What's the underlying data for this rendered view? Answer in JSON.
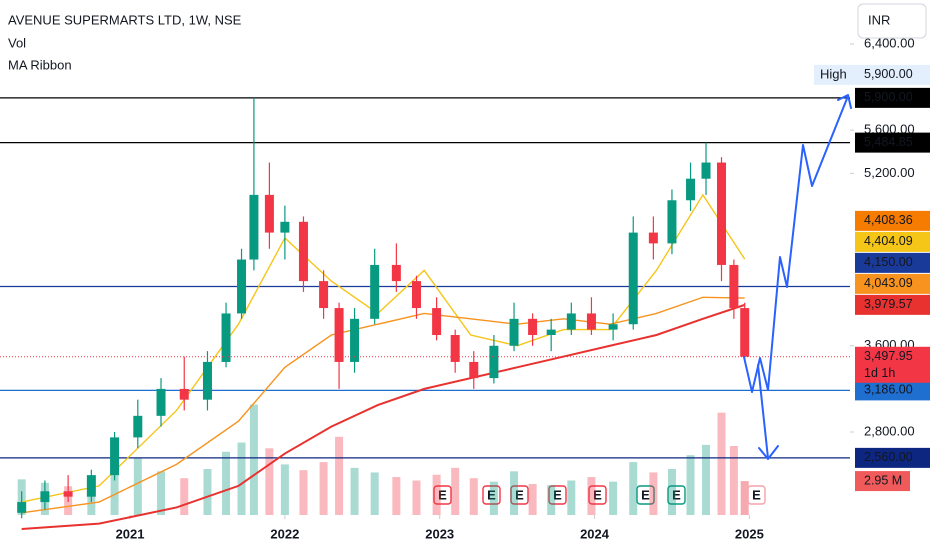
{
  "header": {
    "symbol": "AVENUE SUPERMARTS LTD, 1W, NSE",
    "indicators": [
      "Vol",
      "MA Ribbon"
    ],
    "currency": "INR"
  },
  "chart_data": {
    "type": "candlestick",
    "x": [
      2020.3,
      2020.45,
      2020.6,
      2020.75,
      2020.9,
      2021.05,
      2021.2,
      2021.35,
      2021.5,
      2021.62,
      2021.72,
      2021.8,
      2021.9,
      2022.0,
      2022.12,
      2022.25,
      2022.35,
      2022.45,
      2022.58,
      2022.72,
      2022.85,
      2022.98,
      2023.1,
      2023.22,
      2023.35,
      2023.48,
      2023.6,
      2023.72,
      2023.85,
      2023.98,
      2024.12,
      2024.25,
      2024.38,
      2024.5,
      2024.62,
      2024.72,
      2024.82,
      2024.9,
      2024.97
    ],
    "open": [
      2050,
      2150,
      2250,
      2200,
      2400,
      2750,
      2950,
      3200,
      3100,
      3450,
      3900,
      4400,
      5000,
      4650,
      4750,
      4200,
      3950,
      3450,
      3850,
      4350,
      4200,
      3950,
      3700,
      3450,
      3300,
      3600,
      3850,
      3700,
      3750,
      3900,
      3750,
      3800,
      4650,
      4550,
      4950,
      5150,
      5300,
      4350,
      3950
    ],
    "high": [
      2250,
      2350,
      2400,
      2450,
      2800,
      3100,
      3300,
      3500,
      3550,
      4000,
      4500,
      5900,
      5300,
      4900,
      4800,
      4300,
      4000,
      3950,
      4500,
      4550,
      4250,
      4050,
      3750,
      3550,
      3700,
      4000,
      3900,
      3850,
      4000,
      4050,
      3900,
      4800,
      4800,
      5050,
      5300,
      5484.85,
      5350,
      4400,
      4000
    ],
    "low": [
      2000,
      2080,
      2150,
      2150,
      2350,
      2650,
      2850,
      3000,
      3000,
      3400,
      3850,
      4300,
      4500,
      4400,
      4100,
      3850,
      3200,
      3350,
      3800,
      4100,
      3850,
      3650,
      3350,
      3200,
      3250,
      3550,
      3600,
      3550,
      3700,
      3700,
      3650,
      3750,
      4400,
      4450,
      4850,
      5000,
      4200,
      3850,
      3450
    ],
    "close": [
      2150,
      2250,
      2200,
      2400,
      2750,
      2950,
      3200,
      3100,
      3450,
      3900,
      4400,
      5000,
      4650,
      4750,
      4200,
      3950,
      3450,
      3850,
      4350,
      4200,
      3950,
      3700,
      3450,
      3300,
      3600,
      3850,
      3700,
      3750,
      3900,
      3750,
      3800,
      4650,
      4550,
      4950,
      5150,
      5300,
      4350,
      3950,
      3497.95
    ],
    "last_label": "3,497.95",
    "countdown": "1d 1h",
    "up_color": "#089981",
    "down_color": "#f23645",
    "volume": [
      3.1,
      2.8,
      2.5,
      3.4,
      4.2,
      5.0,
      3.8,
      3.2,
      4.0,
      5.5,
      6.3,
      9.6,
      5.8,
      4.4,
      3.9,
      4.6,
      6.8,
      4.1,
      3.7,
      3.3,
      3.0,
      3.5,
      4.1,
      3.2,
      2.9,
      3.8,
      2.7,
      2.6,
      3.0,
      3.3,
      2.9,
      4.6,
      3.7,
      4.0,
      5.2,
      6.1,
      8.9,
      6.0,
      2.95
    ],
    "volume_label": "2.95 M",
    "vlim": [
      0,
      10
    ],
    "ma": {
      "x": [
        2020.3,
        2020.8,
        2021.3,
        2021.7,
        2022.0,
        2022.3,
        2022.6,
        2022.9,
        2023.2,
        2023.5,
        2023.8,
        2024.1,
        2024.4,
        2024.7,
        2024.97
      ],
      "series": [
        {
          "color": "#f5c518",
          "values": [
            2150,
            2300,
            3000,
            3800,
            4600,
            4200,
            3900,
            4300,
            3700,
            3600,
            3750,
            3750,
            4300,
            5000,
            4404.09
          ],
          "last_label": "4,404.09"
        },
        {
          "color": "#f7931e",
          "values": [
            2050,
            2150,
            2500,
            2900,
            3400,
            3700,
            3800,
            3900,
            3850,
            3800,
            3850,
            3800,
            3900,
            4050,
            4043.09
          ],
          "last_label": "4,043.09"
        },
        {
          "color": "#e8322f",
          "values": [
            1900,
            1950,
            2100,
            2300,
            2600,
            2850,
            3050,
            3200,
            3300,
            3400,
            3500,
            3600,
            3700,
            3850,
            3979.57
          ],
          "last_label": "3,979.57"
        }
      ],
      "extra_labels": [
        {
          "value": 4408.36,
          "label": "4,408.36",
          "color": "#f57c00"
        }
      ]
    },
    "levels": [
      {
        "value": 5900,
        "label": "5,900.00",
        "color": "#000000",
        "note": "High"
      },
      {
        "value": 5484.85,
        "label": "5,484.85",
        "color": "#000000"
      },
      {
        "value": 4150,
        "label": "4,150.00",
        "color": "#1a3a9a"
      },
      {
        "value": 3186,
        "label": "3,186.00",
        "color": "#1e6fd0"
      },
      {
        "value": 2560,
        "label": "2,560.00",
        "color": "#0d2680"
      }
    ],
    "xlim": [
      2020.16,
      2025.65
    ],
    "xticks": [
      2021,
      2022,
      2023,
      2024,
      2025
    ],
    "ylim": [
      2030,
      6808
    ],
    "yticks": [
      {
        "value": 2800,
        "label": "2,800.00"
      },
      {
        "value": 3600,
        "label": "3,600.00"
      },
      {
        "value": 5200,
        "label": "5,200.00"
      },
      {
        "value": 5600,
        "label": "5,600.00"
      },
      {
        "value": 6400,
        "label": "6,400.00"
      }
    ]
  }
}
